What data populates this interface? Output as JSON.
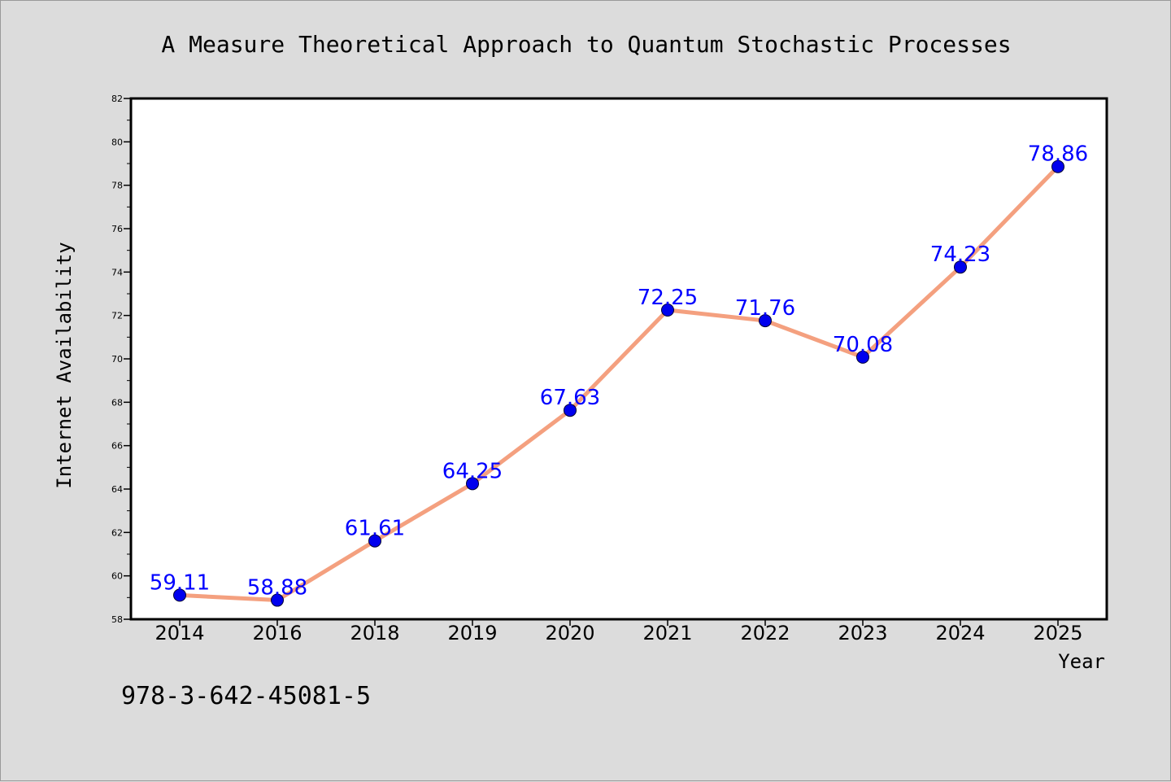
{
  "page": {
    "footer_text": "978-3-642-45081-5"
  },
  "chart_data": {
    "type": "line",
    "title": "A Measure Theoretical Approach to Quantum Stochastic Processes",
    "xlabel": "Year",
    "ylabel": "Internet Availability",
    "categories": [
      "2014",
      "2016",
      "2018",
      "2019",
      "2020",
      "2021",
      "2022",
      "2023",
      "2024",
      "2025"
    ],
    "series": [
      {
        "values": [
          59.11,
          58.88,
          61.61,
          64.25,
          67.63,
          72.25,
          71.76,
          70.08,
          74.23,
          78.86
        ],
        "labels": [
          "59.11",
          "58.88",
          "61.61",
          "64.25",
          "67.63",
          "72.25",
          "71.76",
          "70.08",
          "74.23",
          "78.86"
        ]
      }
    ],
    "ylim": [
      58,
      82
    ],
    "yticks": [
      58,
      60,
      62,
      64,
      66,
      68,
      70,
      72,
      74,
      76,
      78,
      80,
      82
    ],
    "grid": false,
    "legend": "none",
    "colors": {
      "line": "#f4a07f",
      "marker": "#0000ee",
      "data_label": "#0000ff",
      "axis": "#000000",
      "plot_background": "#ffffff",
      "page_background": "#dcdcdc"
    }
  }
}
